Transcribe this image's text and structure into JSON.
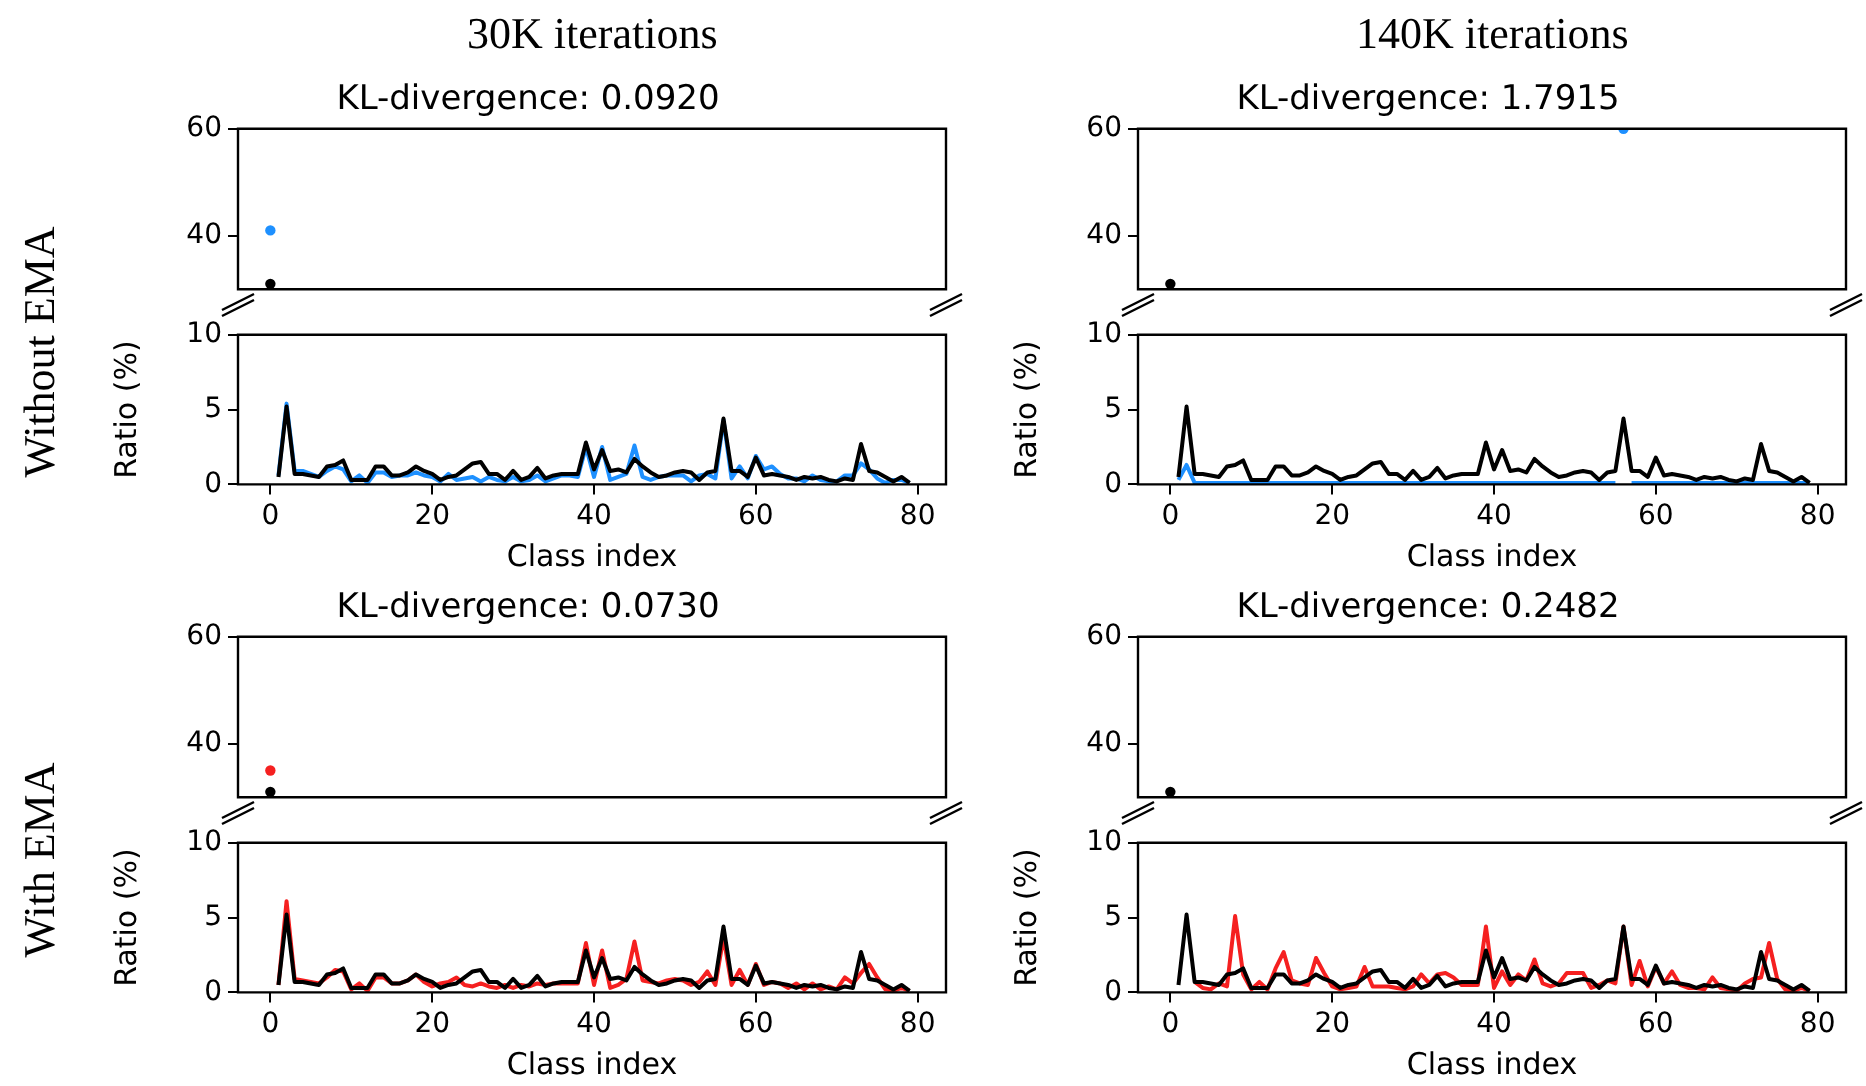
{
  "chart_data": [
    {
      "type": "line",
      "title": "KL-divergence: 0.0920",
      "annotations": [
        "30K iterations",
        "Without EMA"
      ],
      "xlim": [
        -4,
        83.5
      ],
      "ylim": [
        30,
        60
      ],
      "yticks": [
        40,
        60
      ],
      "tick_labels": "y",
      "legend": false,
      "x": [
        0
      ],
      "series": [
        {
          "color": "#000000",
          "values": [
            31
          ],
          "marker": "circle"
        },
        {
          "color": "#1e90ff",
          "values": [
            41
          ],
          "marker": "circle"
        }
      ]
    },
    {
      "type": "line",
      "xlabel": "Class index",
      "ylabel": "Ratio (%)",
      "xlim": [
        -4,
        83.5
      ],
      "xticks": [
        0,
        20,
        40,
        60,
        80
      ],
      "ylim": [
        0,
        10
      ],
      "yticks": [
        0,
        5,
        10
      ],
      "legend": false,
      "x": [
        1,
        2,
        3,
        4,
        5,
        6,
        7,
        8,
        9,
        10,
        11,
        12,
        13,
        14,
        15,
        16,
        17,
        18,
        19,
        20,
        21,
        22,
        23,
        24,
        25,
        26,
        27,
        28,
        29,
        30,
        31,
        32,
        33,
        34,
        35,
        36,
        37,
        38,
        39,
        40,
        41,
        42,
        43,
        44,
        45,
        46,
        47,
        48,
        49,
        50,
        51,
        52,
        53,
        54,
        55,
        56,
        57,
        58,
        59,
        60,
        61,
        62,
        63,
        64,
        65,
        66,
        67,
        68,
        69,
        70,
        71,
        72,
        73,
        74,
        75,
        76,
        77,
        78,
        79
      ],
      "series": [
        {
          "color": "#000000",
          "values": [
            0.5,
            5.2,
            0.7,
            0.7,
            0.6,
            0.5,
            1.2,
            1.3,
            1.6,
            0.3,
            0.3,
            0.3,
            1.2,
            1.2,
            0.6,
            0.6,
            0.8,
            1.2,
            0.9,
            0.7,
            0.3,
            0.5,
            0.6,
            1.0,
            1.4,
            1.5,
            0.7,
            0.7,
            0.3,
            0.9,
            0.3,
            0.5,
            1.1,
            0.4,
            0.6,
            0.7,
            0.7,
            0.7,
            2.8,
            1.0,
            2.3,
            0.9,
            1.0,
            0.8,
            1.7,
            1.2,
            0.8,
            0.5,
            0.6,
            0.8,
            0.9,
            0.8,
            0.3,
            0.8,
            0.9,
            4.4,
            0.9,
            0.9,
            0.5,
            1.8,
            0.6,
            0.7,
            0.6,
            0.5,
            0.3,
            0.5,
            0.4,
            0.5,
            0.3,
            0.2,
            0.4,
            0.3,
            2.7,
            0.9,
            0.8,
            0.5,
            0.2,
            0.5,
            0.1
          ]
        },
        {
          "color": "#1e90ff",
          "values": [
            0.6,
            5.4,
            0.9,
            0.9,
            0.7,
            0.5,
            0.9,
            1.2,
            1.0,
            0.2,
            0.6,
            0.1,
            0.8,
            0.8,
            0.5,
            0.6,
            0.6,
            0.8,
            0.6,
            0.5,
            0.2,
            0.7,
            0.3,
            0.4,
            0.5,
            0.2,
            0.5,
            0.3,
            0.2,
            0.5,
            0.2,
            0.3,
            0.6,
            0.2,
            0.4,
            0.6,
            0.6,
            0.5,
            2.5,
            0.5,
            2.5,
            0.3,
            0.5,
            0.7,
            2.6,
            0.5,
            0.3,
            0.5,
            0.6,
            0.6,
            0.6,
            0.2,
            0.6,
            0.7,
            0.4,
            4.3,
            0.4,
            1.2,
            0.4,
            1.9,
            1.0,
            1.2,
            0.7,
            0.4,
            0.4,
            0.2,
            0.6,
            0.3,
            0.2,
            0.2,
            0.6,
            0.6,
            1.4,
            1.0,
            0.4,
            0.1,
            0.3,
            0.3,
            0.1
          ]
        }
      ]
    },
    {
      "type": "line",
      "title": "KL-divergence: 1.7915",
      "annotations": [
        "140K iterations"
      ],
      "xlim": [
        -4,
        83.5
      ],
      "ylim": [
        30,
        60
      ],
      "yticks": [
        40,
        60
      ],
      "tick_labels": "y",
      "legend": false,
      "x": [
        0,
        56
      ],
      "series": [
        {
          "color": "#000000",
          "values": [
            31,
            null
          ],
          "marker": "circle"
        },
        {
          "color": "#1e90ff",
          "values": [
            null,
            60
          ],
          "marker": "circle"
        }
      ]
    },
    {
      "type": "line",
      "xlabel": "Class index",
      "ylabel": "Ratio (%)",
      "xlim": [
        -4,
        83.5
      ],
      "xticks": [
        0,
        20,
        40,
        60,
        80
      ],
      "ylim": [
        0,
        10
      ],
      "yticks": [
        0,
        5,
        10
      ],
      "legend": false,
      "x": [
        1,
        2,
        3,
        4,
        5,
        6,
        7,
        8,
        9,
        10,
        11,
        12,
        13,
        14,
        15,
        16,
        17,
        18,
        19,
        20,
        21,
        22,
        23,
        24,
        25,
        26,
        27,
        28,
        29,
        30,
        31,
        32,
        33,
        34,
        35,
        36,
        37,
        38,
        39,
        40,
        41,
        42,
        43,
        44,
        45,
        46,
        47,
        48,
        49,
        50,
        51,
        52,
        53,
        54,
        55,
        56,
        57,
        58,
        59,
        60,
        61,
        62,
        63,
        64,
        65,
        66,
        67,
        68,
        69,
        70,
        71,
        72,
        73,
        74,
        75,
        76,
        77,
        78,
        79
      ],
      "series": [
        {
          "color": "#000000",
          "values": [
            0.5,
            5.2,
            0.7,
            0.7,
            0.6,
            0.5,
            1.2,
            1.3,
            1.6,
            0.3,
            0.3,
            0.3,
            1.2,
            1.2,
            0.6,
            0.6,
            0.8,
            1.2,
            0.9,
            0.7,
            0.3,
            0.5,
            0.6,
            1.0,
            1.4,
            1.5,
            0.7,
            0.7,
            0.3,
            0.9,
            0.3,
            0.5,
            1.1,
            0.4,
            0.6,
            0.7,
            0.7,
            0.7,
            2.8,
            1.0,
            2.3,
            0.9,
            1.0,
            0.8,
            1.7,
            1.2,
            0.8,
            0.5,
            0.6,
            0.8,
            0.9,
            0.8,
            0.3,
            0.8,
            0.9,
            4.4,
            0.9,
            0.9,
            0.5,
            1.8,
            0.6,
            0.7,
            0.6,
            0.5,
            0.3,
            0.5,
            0.4,
            0.5,
            0.3,
            0.2,
            0.4,
            0.3,
            2.7,
            0.9,
            0.8,
            0.5,
            0.2,
            0.5,
            0.1
          ]
        },
        {
          "color": "#1e90ff",
          "values": [
            0.3,
            1.3,
            0.1,
            0.1,
            0.1,
            0.1,
            0.1,
            0.1,
            0.1,
            0.1,
            0.1,
            0.1,
            0.1,
            0.1,
            0.1,
            0.1,
            0.1,
            0.1,
            0.1,
            0.1,
            0.1,
            0.1,
            0.1,
            0.1,
            0.1,
            0.1,
            0.1,
            0.1,
            0.1,
            0.1,
            0.1,
            0.1,
            0.1,
            0.1,
            0.1,
            0.1,
            0.1,
            0.1,
            0.1,
            0.1,
            0.1,
            0.1,
            0.1,
            0.1,
            0.1,
            0.1,
            0.1,
            0.1,
            0.1,
            0.1,
            0.1,
            0.1,
            0.1,
            0.1,
            0.1,
            null,
            0.1,
            0.1,
            0.1,
            0.1,
            0.1,
            0.1,
            0.1,
            0.1,
            0.1,
            0.1,
            0.1,
            0.1,
            0.1,
            0.1,
            0.1,
            0.1,
            0.1,
            0.1,
            0.1,
            0.1,
            0.1,
            0.1,
            0.1
          ]
        }
      ]
    },
    {
      "type": "line",
      "title": "KL-divergence: 0.0730",
      "annotations": [
        "With EMA"
      ],
      "xlim": [
        -4,
        83.5
      ],
      "ylim": [
        30,
        60
      ],
      "yticks": [
        40,
        60
      ],
      "tick_labels": "y",
      "legend": false,
      "x": [
        0
      ],
      "series": [
        {
          "color": "#000000",
          "values": [
            31
          ],
          "marker": "circle"
        },
        {
          "color": "#f52020",
          "values": [
            35
          ],
          "marker": "circle"
        }
      ]
    },
    {
      "type": "line",
      "xlabel": "Class index",
      "ylabel": "Ratio (%)",
      "xlim": [
        -4,
        83.5
      ],
      "xticks": [
        0,
        20,
        40,
        60,
        80
      ],
      "ylim": [
        0,
        10
      ],
      "yticks": [
        0,
        5,
        10
      ],
      "legend": false,
      "x": [
        1,
        2,
        3,
        4,
        5,
        6,
        7,
        8,
        9,
        10,
        11,
        12,
        13,
        14,
        15,
        16,
        17,
        18,
        19,
        20,
        21,
        22,
        23,
        24,
        25,
        26,
        27,
        28,
        29,
        30,
        31,
        32,
        33,
        34,
        35,
        36,
        37,
        38,
        39,
        40,
        41,
        42,
        43,
        44,
        45,
        46,
        47,
        48,
        49,
        50,
        51,
        52,
        53,
        54,
        55,
        56,
        57,
        58,
        59,
        60,
        61,
        62,
        63,
        64,
        65,
        66,
        67,
        68,
        69,
        70,
        71,
        72,
        73,
        74,
        75,
        76,
        77,
        78,
        79
      ],
      "series": [
        {
          "color": "#000000",
          "values": [
            0.5,
            5.2,
            0.7,
            0.7,
            0.6,
            0.5,
            1.2,
            1.3,
            1.6,
            0.3,
            0.3,
            0.3,
            1.2,
            1.2,
            0.6,
            0.6,
            0.8,
            1.2,
            0.9,
            0.7,
            0.3,
            0.5,
            0.6,
            1.0,
            1.4,
            1.5,
            0.7,
            0.7,
            0.3,
            0.9,
            0.3,
            0.5,
            1.1,
            0.4,
            0.6,
            0.7,
            0.7,
            0.7,
            2.8,
            1.0,
            2.3,
            0.9,
            1.0,
            0.8,
            1.7,
            1.2,
            0.8,
            0.5,
            0.6,
            0.8,
            0.9,
            0.8,
            0.3,
            0.8,
            0.9,
            4.4,
            0.9,
            0.9,
            0.5,
            1.8,
            0.6,
            0.7,
            0.6,
            0.5,
            0.3,
            0.5,
            0.4,
            0.5,
            0.3,
            0.2,
            0.4,
            0.3,
            2.7,
            0.9,
            0.8,
            0.5,
            0.2,
            0.5,
            0.1
          ]
        },
        {
          "color": "#f52020",
          "values": [
            0.5,
            6.1,
            0.9,
            0.8,
            0.7,
            0.6,
            1.0,
            1.5,
            1.4,
            0.2,
            0.6,
            0.1,
            1.0,
            1.0,
            0.6,
            0.6,
            0.8,
            1.2,
            0.7,
            0.4,
            0.6,
            0.7,
            1.0,
            0.5,
            0.4,
            0.6,
            0.4,
            0.3,
            0.5,
            0.3,
            0.5,
            0.4,
            0.6,
            0.5,
            0.6,
            0.6,
            0.6,
            0.6,
            3.3,
            0.5,
            2.8,
            0.3,
            0.5,
            0.9,
            3.4,
            0.8,
            0.7,
            0.6,
            0.8,
            0.9,
            0.8,
            0.5,
            0.7,
            1.4,
            0.5,
            3.7,
            0.5,
            1.5,
            0.5,
            1.9,
            0.5,
            0.7,
            0.6,
            0.3,
            0.6,
            0.2,
            0.6,
            0.2,
            0.4,
            0.2,
            1.0,
            0.6,
            1.3,
            1.9,
            1.0,
            0.2,
            0.1,
            0.3,
            0.1
          ]
        }
      ]
    },
    {
      "type": "line",
      "title": "KL-divergence: 0.2482",
      "xlim": [
        -4,
        83.5
      ],
      "ylim": [
        30,
        60
      ],
      "yticks": [
        40,
        60
      ],
      "tick_labels": "y",
      "legend": false,
      "x": [
        0
      ],
      "series": [
        {
          "color": "#000000",
          "values": [
            31
          ],
          "marker": "circle"
        }
      ]
    },
    {
      "type": "line",
      "xlabel": "Class index",
      "ylabel": "Ratio (%)",
      "xlim": [
        -4,
        83.5
      ],
      "xticks": [
        0,
        20,
        40,
        60,
        80
      ],
      "ylim": [
        0,
        10
      ],
      "yticks": [
        0,
        5,
        10
      ],
      "legend": false,
      "x": [
        1,
        2,
        3,
        4,
        5,
        6,
        7,
        8,
        9,
        10,
        11,
        12,
        13,
        14,
        15,
        16,
        17,
        18,
        19,
        20,
        21,
        22,
        23,
        24,
        25,
        26,
        27,
        28,
        29,
        30,
        31,
        32,
        33,
        34,
        35,
        36,
        37,
        38,
        39,
        40,
        41,
        42,
        43,
        44,
        45,
        46,
        47,
        48,
        49,
        50,
        51,
        52,
        53,
        54,
        55,
        56,
        57,
        58,
        59,
        60,
        61,
        62,
        63,
        64,
        65,
        66,
        67,
        68,
        69,
        70,
        71,
        72,
        73,
        74,
        75,
        76,
        77,
        78,
        79
      ],
      "series": [
        {
          "color": "#000000",
          "values": [
            0.5,
            5.2,
            0.7,
            0.7,
            0.6,
            0.5,
            1.2,
            1.3,
            1.6,
            0.3,
            0.3,
            0.3,
            1.2,
            1.2,
            0.6,
            0.6,
            0.8,
            1.2,
            0.9,
            0.7,
            0.3,
            0.5,
            0.6,
            1.0,
            1.4,
            1.5,
            0.7,
            0.7,
            0.3,
            0.9,
            0.3,
            0.5,
            1.1,
            0.4,
            0.6,
            0.7,
            0.7,
            0.7,
            2.8,
            1.0,
            2.3,
            0.9,
            1.0,
            0.8,
            1.7,
            1.2,
            0.8,
            0.5,
            0.6,
            0.8,
            0.9,
            0.8,
            0.3,
            0.8,
            0.9,
            4.4,
            0.9,
            0.9,
            0.5,
            1.8,
            0.6,
            0.7,
            0.6,
            0.5,
            0.3,
            0.5,
            0.4,
            0.5,
            0.3,
            0.2,
            0.4,
            0.3,
            2.7,
            0.9,
            0.8,
            0.5,
            0.2,
            0.5,
            0.1
          ]
        },
        {
          "color": "#f52020",
          "values": [
            null,
            null,
            0.7,
            0.3,
            0.2,
            0.6,
            0.4,
            5.1,
            1.2,
            0.2,
            0.7,
            0.2,
            1.6,
            2.7,
            0.8,
            0.6,
            0.5,
            2.3,
            1.3,
            0.4,
            0.2,
            0.3,
            0.4,
            1.7,
            0.4,
            0.4,
            0.4,
            0.3,
            0.2,
            0.4,
            1.2,
            0.6,
            1.2,
            1.3,
            1.0,
            0.5,
            0.5,
            0.5,
            4.4,
            0.3,
            1.4,
            0.5,
            1.2,
            0.8,
            2.2,
            0.6,
            0.4,
            0.6,
            1.3,
            1.3,
            1.3,
            0.3,
            0.5,
            0.8,
            0.6,
            4.4,
            0.5,
            2.1,
            0.4,
            1.7,
            0.6,
            1.4,
            0.5,
            0.3,
            0.3,
            0.2,
            1.0,
            0.3,
            0.2,
            0.1,
            0.6,
            0.9,
            1.0,
            3.3,
            0.9,
            0.2,
            0.1,
            0.3,
            0.1
          ]
        }
      ]
    }
  ]
}
